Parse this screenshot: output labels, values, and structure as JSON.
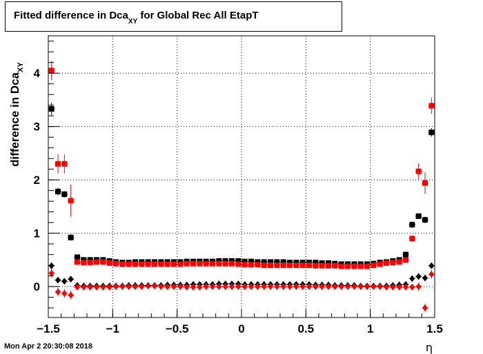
{
  "chart_data": {
    "type": "scatter",
    "title_main": "Fitted difference in Dca",
    "title_sub": "XY",
    "title_rest": "for Global Rec All EtapT",
    "ylabel_main": "difference in Dca",
    "ylabel_sub": "XY",
    "xlabel": "η",
    "xlim": [
      -1.5,
      1.5
    ],
    "ylim": [
      -0.58,
      4.7
    ],
    "xticks": [
      "−1.5",
      "−1",
      "−0.5",
      "0",
      "0.5",
      "1",
      "1.5"
    ],
    "xtick_values": [
      -1.5,
      -1,
      -0.5,
      0,
      0.5,
      1,
      1.5
    ],
    "yticks": [
      "0",
      "1",
      "2",
      "3",
      "4"
    ],
    "ytick_values": [
      0,
      1,
      2,
      3,
      4
    ],
    "grid": true,
    "x": [
      -1.475,
      -1.425,
      -1.375,
      -1.325,
      -1.275,
      -1.225,
      -1.175,
      -1.125,
      -1.075,
      -1.025,
      -0.975,
      -0.925,
      -0.875,
      -0.825,
      -0.775,
      -0.725,
      -0.675,
      -0.625,
      -0.575,
      -0.525,
      -0.475,
      -0.425,
      -0.375,
      -0.325,
      -0.275,
      -0.225,
      -0.175,
      -0.125,
      -0.075,
      -0.025,
      0.025,
      0.075,
      0.125,
      0.175,
      0.225,
      0.275,
      0.325,
      0.375,
      0.425,
      0.475,
      0.525,
      0.575,
      0.625,
      0.675,
      0.725,
      0.775,
      0.825,
      0.875,
      0.925,
      0.975,
      1.025,
      1.075,
      1.125,
      1.175,
      1.225,
      1.275,
      1.325,
      1.375,
      1.425,
      1.475
    ],
    "series": [
      {
        "marker": "square",
        "color": "#000000",
        "values": [
          3.33,
          1.78,
          1.73,
          0.92,
          0.55,
          0.5,
          0.5,
          0.5,
          0.5,
          0.48,
          0.46,
          0.45,
          0.45,
          0.46,
          0.46,
          0.46,
          0.46,
          0.46,
          0.46,
          0.46,
          0.46,
          0.47,
          0.47,
          0.47,
          0.47,
          0.47,
          0.48,
          0.48,
          0.48,
          0.48,
          0.47,
          0.47,
          0.46,
          0.46,
          0.46,
          0.46,
          0.46,
          0.45,
          0.45,
          0.45,
          0.45,
          0.45,
          0.44,
          0.44,
          0.43,
          0.42,
          0.42,
          0.42,
          0.42,
          0.42,
          0.43,
          0.45,
          0.46,
          0.48,
          0.5,
          0.6,
          1.16,
          1.32,
          1.25,
          2.89
        ],
        "errors": [
          0.12,
          0.07,
          0.06,
          0.06,
          0.03,
          0.02,
          0.02,
          0.02,
          0.02,
          0.02,
          0.02,
          0.02,
          0.02,
          0.02,
          0.02,
          0.02,
          0.02,
          0.02,
          0.02,
          0.02,
          0.02,
          0.02,
          0.02,
          0.02,
          0.02,
          0.02,
          0.02,
          0.02,
          0.02,
          0.02,
          0.02,
          0.02,
          0.02,
          0.02,
          0.02,
          0.02,
          0.02,
          0.02,
          0.02,
          0.02,
          0.02,
          0.02,
          0.02,
          0.02,
          0.02,
          0.02,
          0.02,
          0.02,
          0.02,
          0.02,
          0.02,
          0.02,
          0.02,
          0.02,
          0.02,
          0.04,
          0.06,
          0.05,
          0.06,
          0.08
        ]
      },
      {
        "marker": "square",
        "color": "#ff0000",
        "values": [
          4.05,
          2.3,
          2.3,
          1.61,
          0.46,
          0.45,
          0.45,
          0.46,
          0.46,
          0.44,
          0.43,
          0.42,
          0.42,
          0.42,
          0.42,
          0.42,
          0.42,
          0.42,
          0.42,
          0.42,
          0.42,
          0.43,
          0.43,
          0.43,
          0.43,
          0.43,
          0.43,
          0.43,
          0.43,
          0.42,
          0.41,
          0.41,
          0.41,
          0.4,
          0.4,
          0.4,
          0.4,
          0.4,
          0.4,
          0.4,
          0.4,
          0.39,
          0.39,
          0.39,
          0.39,
          0.38,
          0.38,
          0.38,
          0.38,
          0.38,
          0.4,
          0.42,
          0.44,
          0.45,
          0.46,
          0.5,
          0.9,
          2.16,
          1.94,
          3.39
        ],
        "errors": [
          0.18,
          0.18,
          0.18,
          0.3,
          0.04,
          0.02,
          0.02,
          0.02,
          0.02,
          0.02,
          0.02,
          0.02,
          0.02,
          0.02,
          0.02,
          0.02,
          0.02,
          0.02,
          0.02,
          0.02,
          0.02,
          0.02,
          0.02,
          0.02,
          0.02,
          0.02,
          0.02,
          0.02,
          0.02,
          0.02,
          0.02,
          0.02,
          0.02,
          0.02,
          0.02,
          0.02,
          0.02,
          0.02,
          0.02,
          0.02,
          0.02,
          0.02,
          0.02,
          0.02,
          0.02,
          0.02,
          0.02,
          0.02,
          0.02,
          0.02,
          0.02,
          0.02,
          0.02,
          0.02,
          0.02,
          0.05,
          0.06,
          0.15,
          0.2,
          0.15
        ]
      },
      {
        "marker": "diamond",
        "color": "#000000",
        "values": [
          0.39,
          0.12,
          0.1,
          0.14,
          0.02,
          0.01,
          0.01,
          0.01,
          0.01,
          0.01,
          0.01,
          0.01,
          0.02,
          0.02,
          0.02,
          0.02,
          0.02,
          0.02,
          0.03,
          0.03,
          0.03,
          0.03,
          0.04,
          0.04,
          0.04,
          0.04,
          0.05,
          0.05,
          0.05,
          0.05,
          0.04,
          0.04,
          0.04,
          0.04,
          0.04,
          0.04,
          0.04,
          0.04,
          0.04,
          0.04,
          0.04,
          0.03,
          0.03,
          0.03,
          0.02,
          0.02,
          0.02,
          0.02,
          0.01,
          0.01,
          0.01,
          0.01,
          0.01,
          0.02,
          0.03,
          0.04,
          0.15,
          0.19,
          0.16,
          0.39
        ],
        "errors": [
          0.05,
          0.04,
          0.04,
          0.04,
          0.02,
          0.01,
          0.01,
          0.01,
          0.01,
          0.01,
          0.01,
          0.01,
          0.01,
          0.01,
          0.01,
          0.01,
          0.01,
          0.01,
          0.01,
          0.01,
          0.01,
          0.01,
          0.01,
          0.01,
          0.01,
          0.01,
          0.01,
          0.01,
          0.01,
          0.01,
          0.01,
          0.01,
          0.01,
          0.01,
          0.01,
          0.01,
          0.01,
          0.01,
          0.01,
          0.01,
          0.01,
          0.01,
          0.01,
          0.01,
          0.01,
          0.01,
          0.01,
          0.01,
          0.01,
          0.01,
          0.01,
          0.01,
          0.01,
          0.01,
          0.01,
          0.02,
          0.03,
          0.04,
          0.04,
          0.05
        ]
      },
      {
        "marker": "diamond",
        "color": "#ff0000",
        "values": [
          0.25,
          -0.1,
          -0.13,
          -0.16,
          -0.01,
          -0.01,
          -0.01,
          -0.01,
          -0.01,
          -0.01,
          0.0,
          0.0,
          0.0,
          0.0,
          0.0,
          0.01,
          0.01,
          0.0,
          0.0,
          0.0,
          0.0,
          -0.01,
          -0.01,
          -0.01,
          0.0,
          0.0,
          0.0,
          0.0,
          0.0,
          0.0,
          0.0,
          0.0,
          0.0,
          0.0,
          0.0,
          0.0,
          0.0,
          0.0,
          0.0,
          0.0,
          0.0,
          0.0,
          0.0,
          0.0,
          0.0,
          0.0,
          0.0,
          0.0,
          0.0,
          0.0,
          0.0,
          0.0,
          -0.01,
          -0.01,
          -0.01,
          -0.01,
          -0.01,
          0.0,
          -0.4,
          0.23
        ],
        "errors": [
          0.08,
          0.08,
          0.08,
          0.08,
          0.02,
          0.01,
          0.01,
          0.01,
          0.01,
          0.01,
          0.01,
          0.01,
          0.01,
          0.01,
          0.01,
          0.01,
          0.01,
          0.01,
          0.01,
          0.01,
          0.01,
          0.01,
          0.01,
          0.01,
          0.01,
          0.01,
          0.01,
          0.01,
          0.01,
          0.01,
          0.01,
          0.01,
          0.01,
          0.01,
          0.01,
          0.01,
          0.01,
          0.01,
          0.01,
          0.01,
          0.01,
          0.01,
          0.01,
          0.01,
          0.01,
          0.01,
          0.01,
          0.01,
          0.01,
          0.01,
          0.01,
          0.01,
          0.01,
          0.01,
          0.01,
          0.02,
          0.04,
          0.08,
          0.08,
          0.08
        ]
      }
    ]
  },
  "timestamp": "Mon Apr  2 20:30:08 2018"
}
